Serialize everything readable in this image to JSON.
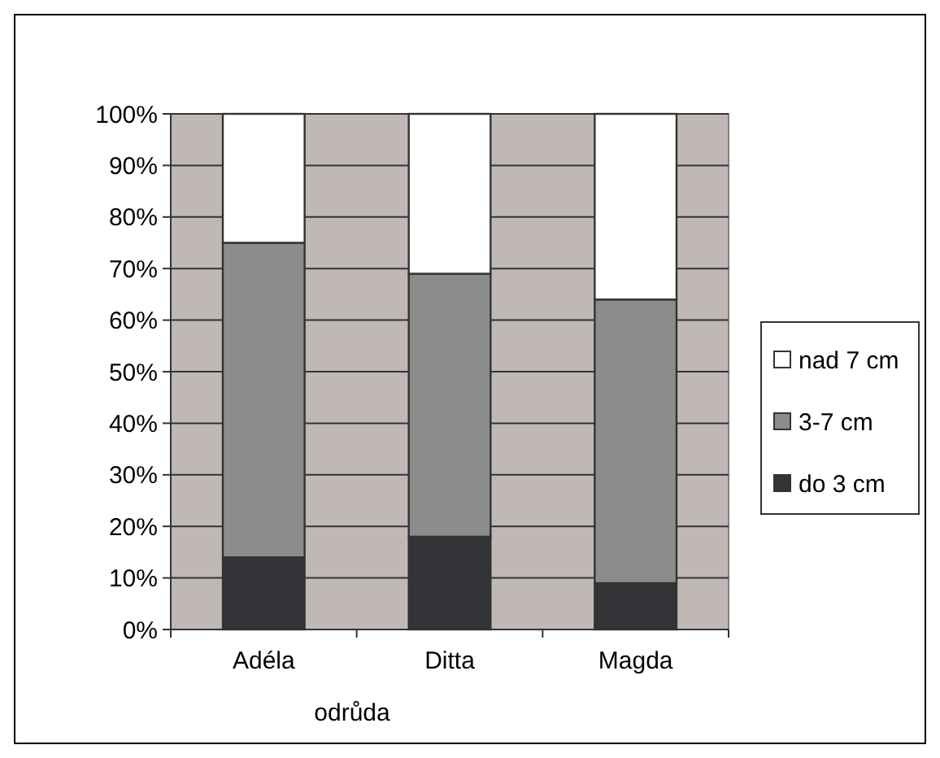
{
  "chart_data": {
    "type": "bar",
    "stacked": true,
    "xlabel": "odrůda",
    "categories": [
      "Adéla",
      "Ditta",
      "Magda"
    ],
    "series": [
      {
        "name": "do 3 cm",
        "color": "#333338",
        "values": [
          14,
          18,
          9
        ]
      },
      {
        "name": "3-7 cm",
        "color": "#8c8c8c",
        "values": [
          61,
          51,
          55
        ]
      },
      {
        "name": "nad 7 cm",
        "color": "#ffffff",
        "values": [
          25,
          31,
          36
        ]
      }
    ],
    "ylim": [
      0,
      100
    ],
    "yticks": [
      {
        "value": 0,
        "label": "0%"
      },
      {
        "value": 10,
        "label": "10%"
      },
      {
        "value": 20,
        "label": "20%"
      },
      {
        "value": 30,
        "label": "30%"
      },
      {
        "value": 40,
        "label": "40%"
      },
      {
        "value": 50,
        "label": "50%"
      },
      {
        "value": 60,
        "label": "60%"
      },
      {
        "value": 70,
        "label": "70%"
      },
      {
        "value": 80,
        "label": "80%"
      },
      {
        "value": 90,
        "label": "90%"
      },
      {
        "value": 100,
        "label": "100%"
      }
    ],
    "grid": "y",
    "legend": "right"
  }
}
